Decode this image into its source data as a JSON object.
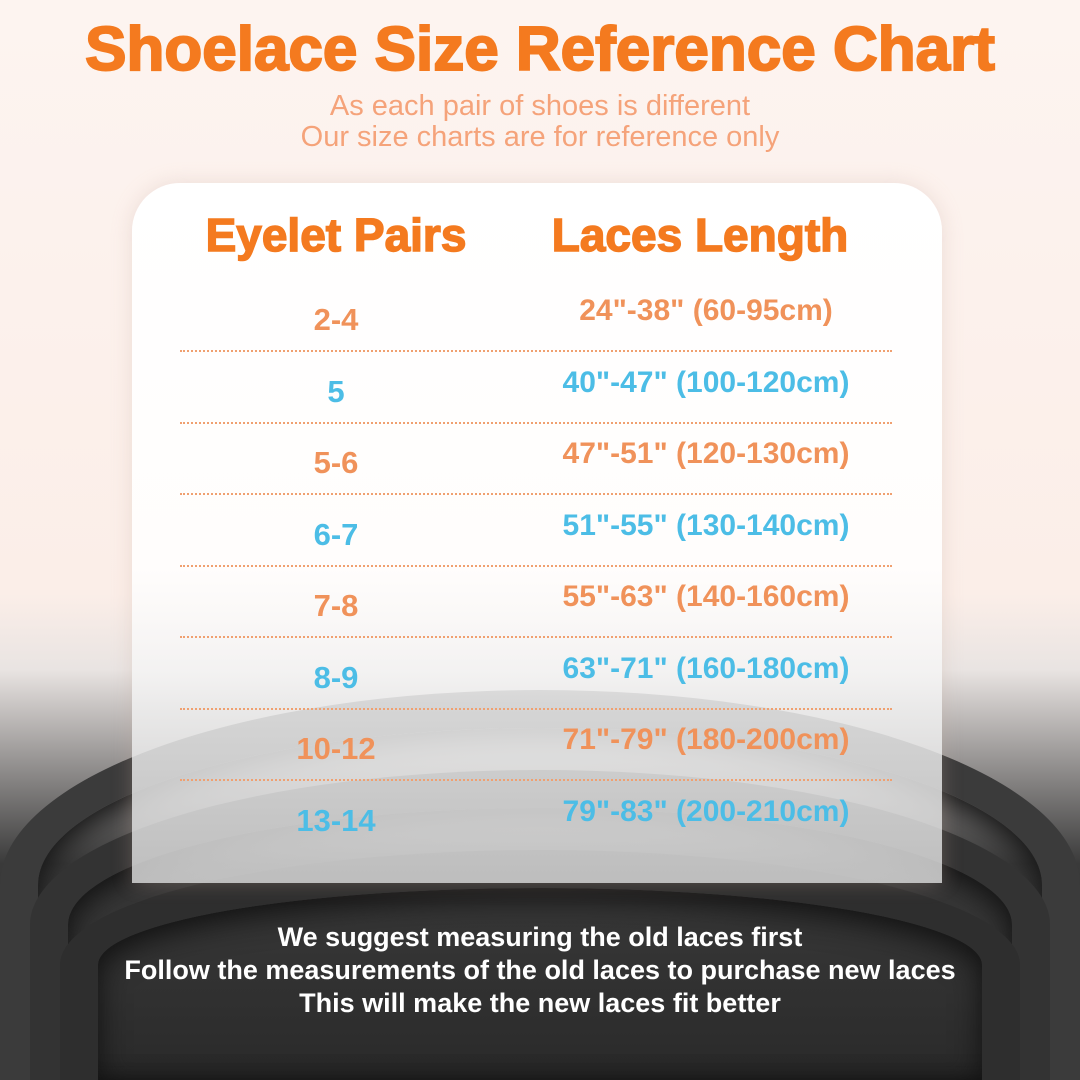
{
  "title": "Shoelace Size Reference Chart",
  "subtitle": [
    "As each pair of shoes is different",
    "Our size charts are for reference only"
  ],
  "headers": {
    "eyelet": "Eyelet Pairs",
    "length": "Laces Length"
  },
  "rows": [
    {
      "eyelet": "2-4",
      "length": "24\"-38\" (60-95cm)",
      "color": "#f0925a"
    },
    {
      "eyelet": "5",
      "length": "40\"-47\" (100-120cm)",
      "color": "#4cbde6"
    },
    {
      "eyelet": "5-6",
      "length": "47\"-51\" (120-130cm)",
      "color": "#f0925a"
    },
    {
      "eyelet": "6-7",
      "length": "51\"-55\" (130-140cm)",
      "color": "#4cbde6"
    },
    {
      "eyelet": "7-8",
      "length": "55\"-63\" (140-160cm)",
      "color": "#f0925a"
    },
    {
      "eyelet": "8-9",
      "length": "63\"-71\" (160-180cm)",
      "color": "#4cbde6"
    },
    {
      "eyelet": "10-12",
      "length": "71\"-79\" (180-200cm)",
      "color": "#f0925a"
    },
    {
      "eyelet": "13-14",
      "length": "79\"-83\" (200-210cm)",
      "color": "#4cbde6"
    }
  ],
  "footer": [
    "We suggest measuring the old laces first",
    "Follow the measurements of the old laces to purchase new laces",
    "This will make the new laces fit better"
  ],
  "colors": {
    "title": "#f47a1f",
    "subtitle": "#f5a37a",
    "orange_row": "#f0925a",
    "blue_row": "#4cbde6"
  }
}
